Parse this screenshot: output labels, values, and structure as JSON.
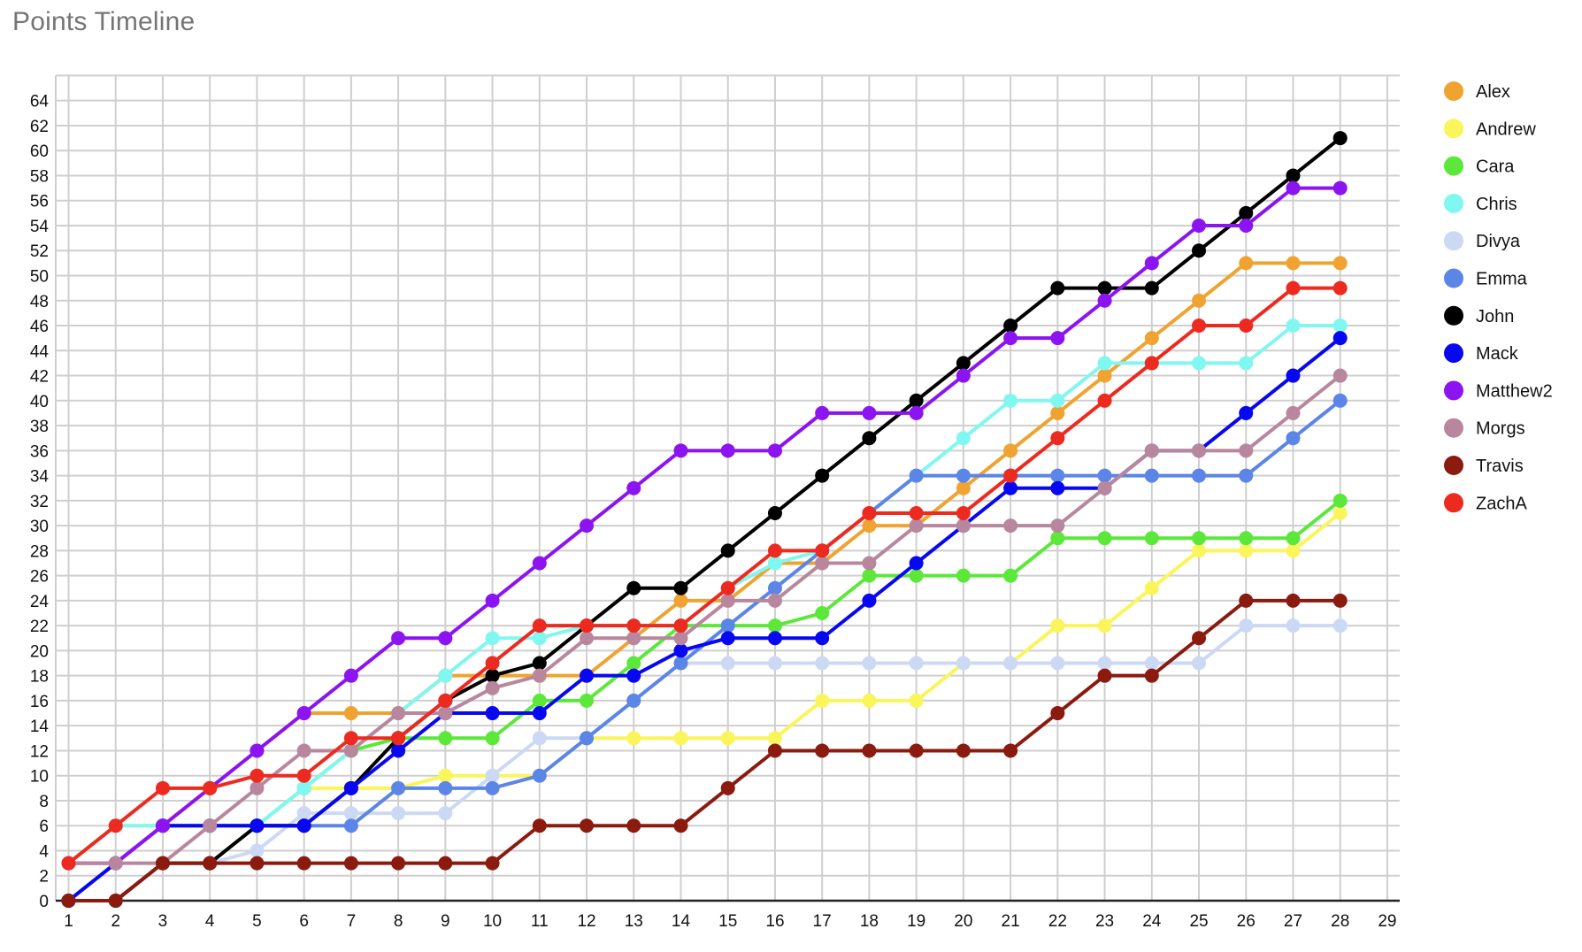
{
  "title": "Points Timeline",
  "chart_data": {
    "type": "line",
    "title": "Points Timeline",
    "xlabel": "",
    "ylabel": "",
    "xlim": [
      1,
      29
    ],
    "ylim": [
      0,
      66
    ],
    "x_tick_step": 1,
    "y_tick_step": 2,
    "y_label_max": 64,
    "grid": true,
    "legend_position": "right",
    "marker_radius": 8,
    "line_width": 4,
    "x": [
      1,
      2,
      3,
      4,
      5,
      6,
      7,
      8,
      9,
      10,
      11,
      12,
      13,
      14,
      15,
      16,
      17,
      18,
      19,
      20,
      21,
      22,
      23,
      24,
      25,
      26,
      27,
      28
    ],
    "series": [
      {
        "name": "Alex",
        "color": "#F0A330",
        "values": [
          3,
          3,
          6,
          9,
          12,
          15,
          15,
          15,
          18,
          18,
          18,
          18,
          21,
          24,
          24,
          27,
          27,
          30,
          30,
          33,
          36,
          39,
          42,
          45,
          48,
          51,
          51,
          51
        ]
      },
      {
        "name": "Andrew",
        "color": "#FAF55A",
        "values": [
          3,
          6,
          6,
          6,
          6,
          9,
          9,
          9,
          10,
          10,
          10,
          13,
          13,
          13,
          13,
          13,
          16,
          16,
          16,
          19,
          19,
          22,
          22,
          25,
          28,
          28,
          28,
          31
        ]
      },
      {
        "name": "Cara",
        "color": "#5CE83A",
        "values": [
          0,
          0,
          3,
          3,
          6,
          9,
          12,
          13,
          13,
          13,
          16,
          16,
          19,
          22,
          22,
          22,
          23,
          26,
          26,
          26,
          26,
          29,
          29,
          29,
          29,
          29,
          29,
          32
        ]
      },
      {
        "name": "Chris",
        "color": "#80F7F0",
        "values": [
          3,
          6,
          6,
          6,
          6,
          9,
          12,
          15,
          18,
          21,
          21,
          22,
          22,
          22,
          25,
          27,
          28,
          31,
          34,
          37,
          40,
          40,
          43,
          43,
          43,
          43,
          46,
          46
        ]
      },
      {
        "name": "Divya",
        "color": "#CCD9F5",
        "values": [
          0,
          0,
          3,
          3,
          4,
          7,
          7,
          7,
          7,
          10,
          13,
          13,
          16,
          19,
          19,
          19,
          19,
          19,
          19,
          19,
          19,
          19,
          19,
          19,
          19,
          22,
          22,
          22
        ]
      },
      {
        "name": "Emma",
        "color": "#5C85E8",
        "values": [
          0,
          3,
          6,
          6,
          6,
          6,
          6,
          9,
          9,
          9,
          10,
          13,
          16,
          19,
          22,
          25,
          28,
          31,
          34,
          34,
          34,
          34,
          34,
          34,
          34,
          34,
          37,
          40
        ]
      },
      {
        "name": "John",
        "color": "#000000",
        "values": [
          0,
          0,
          3,
          3,
          6,
          6,
          9,
          13,
          16,
          18,
          19,
          22,
          25,
          25,
          28,
          31,
          34,
          37,
          40,
          43,
          46,
          49,
          49,
          49,
          52,
          55,
          58,
          61
        ]
      },
      {
        "name": "Mack",
        "color": "#0808F0",
        "values": [
          0,
          3,
          6,
          6,
          6,
          6,
          9,
          12,
          15,
          15,
          15,
          18,
          18,
          20,
          21,
          21,
          21,
          24,
          27,
          30,
          33,
          33,
          33,
          36,
          36,
          39,
          42,
          45
        ]
      },
      {
        "name": "Matthew2",
        "color": "#8C14F0",
        "values": [
          3,
          3,
          6,
          9,
          12,
          15,
          18,
          21,
          21,
          24,
          27,
          30,
          33,
          36,
          36,
          36,
          39,
          39,
          39,
          42,
          45,
          45,
          48,
          51,
          54,
          54,
          57,
          57
        ]
      },
      {
        "name": "Morgs",
        "color": "#B8879E",
        "values": [
          3,
          3,
          3,
          6,
          9,
          12,
          12,
          15,
          15,
          17,
          18,
          21,
          21,
          21,
          24,
          24,
          27,
          27,
          30,
          30,
          30,
          30,
          33,
          36,
          36,
          36,
          39,
          42
        ]
      },
      {
        "name": "Travis",
        "color": "#8B1A0F",
        "values": [
          0,
          0,
          3,
          3,
          3,
          3,
          3,
          3,
          3,
          3,
          6,
          6,
          6,
          6,
          9,
          12,
          12,
          12,
          12,
          12,
          12,
          15,
          18,
          18,
          21,
          24,
          24,
          24
        ]
      },
      {
        "name": "ZachA",
        "color": "#ED2A1F",
        "values": [
          3,
          6,
          9,
          9,
          10,
          10,
          13,
          13,
          16,
          19,
          22,
          22,
          22,
          22,
          25,
          28,
          28,
          31,
          31,
          31,
          34,
          37,
          40,
          43,
          46,
          46,
          49,
          49
        ]
      }
    ],
    "colors": {
      "background": "#ffffff",
      "grid": "#cfcfcf",
      "axis": "#222222",
      "tick_text": "#111111",
      "title_text": "#757575"
    }
  }
}
